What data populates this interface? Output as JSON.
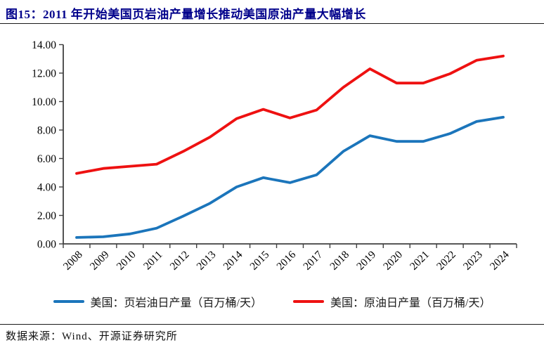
{
  "header": {
    "title": "图15：2011 年开始美国页岩油产量增长推动美国原油产量大幅增长"
  },
  "colors": {
    "title": "#00008B",
    "axis": "#404040",
    "tick_label": "#000000",
    "shale_line": "#1B75BB",
    "crude_line": "#EE1111"
  },
  "legend": {
    "items": [
      {
        "label": "美国：页岩油日产量（百万桶/天）",
        "color": "#1B75BB"
      },
      {
        "label": "美国：原油日产量（百万桶/天）",
        "color": "#EE1111"
      }
    ]
  },
  "chart_data": {
    "type": "line",
    "title": "",
    "xlabel": "",
    "ylabel": "",
    "categories": [
      "2008",
      "2009",
      "2010",
      "2011",
      "2012",
      "2013",
      "2014",
      "2015",
      "2016",
      "2017",
      "2018",
      "2019",
      "2020",
      "2021",
      "2022",
      "2023",
      "2024"
    ],
    "series": [
      {
        "name": "美国：页岩油日产量（百万桶/天）",
        "color": "#1B75BB",
        "values": [
          0.45,
          0.5,
          0.7,
          1.1,
          1.95,
          2.85,
          4.0,
          4.65,
          4.3,
          4.85,
          6.5,
          7.6,
          7.2,
          7.2,
          7.75,
          8.6,
          8.9
        ]
      },
      {
        "name": "美国：原油日产量（百万桶/天）",
        "color": "#EE1111",
        "values": [
          4.95,
          5.3,
          5.45,
          5.6,
          6.5,
          7.5,
          8.8,
          9.45,
          8.85,
          9.4,
          11.0,
          12.3,
          11.3,
          11.3,
          11.95,
          12.9,
          13.2
        ]
      }
    ],
    "ylim": [
      0,
      14
    ],
    "y_tick_step": 2,
    "y_tick_format": "2-decimals",
    "grid": false,
    "legend_position": "bottom",
    "x_label_rotation": -45
  },
  "footer": {
    "source": "数据来源：Wind、开源证券研究所"
  }
}
